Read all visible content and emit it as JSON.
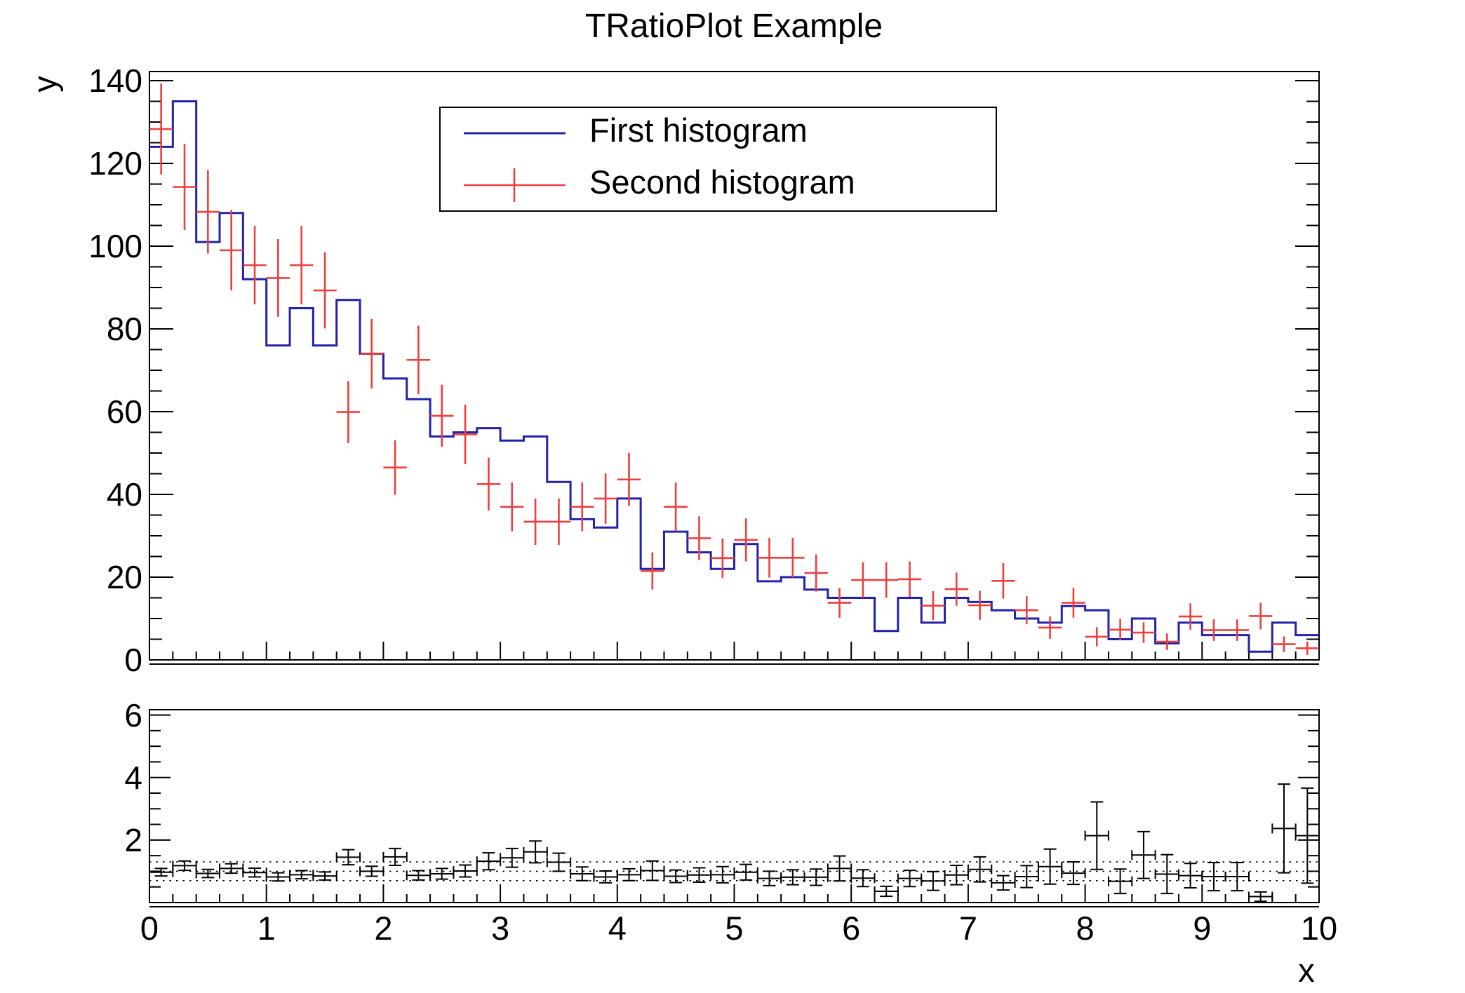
{
  "title": "TRatioPlot Example",
  "axes": {
    "x_title": "x",
    "y_title": "y",
    "x_tick_labels": [
      "0",
      "1",
      "2",
      "3",
      "4",
      "5",
      "6",
      "7",
      "8",
      "9",
      "10"
    ],
    "y_tick_labels": [
      "0",
      "20",
      "40",
      "60",
      "80",
      "100",
      "120",
      "140"
    ],
    "ratio_tick_labels": [
      "2",
      "4",
      "6"
    ]
  },
  "legend": {
    "entries": [
      {
        "label": "First histogram",
        "color": "#2121ac",
        "type": "line"
      },
      {
        "label": "Second histogram",
        "color": "#ee3e3e",
        "type": "errorbar"
      }
    ]
  },
  "colors": {
    "first_hist": "#2121ac",
    "second_hist": "#ee3e3e",
    "ratio_points": "#000000",
    "frame": "#000000"
  },
  "chart_data": {
    "type": "ratio_hist",
    "title": "TRatioPlot Example",
    "xlabel": "x",
    "ylabel": "y",
    "x_start": 0,
    "x_end": 10,
    "n_bins": 50,
    "bin_width": 0.2,
    "main_ylim": [
      0,
      142.2
    ],
    "main_yticks": [
      0,
      20,
      40,
      60,
      80,
      100,
      120,
      140
    ],
    "main_yminor_step": 5,
    "ratio_ylim": [
      0,
      6.17
    ],
    "ratio_yticks": [
      2,
      4,
      6
    ],
    "ratio_yminor_step": 0.5,
    "xticks": [
      0,
      1,
      2,
      3,
      4,
      5,
      6,
      7,
      8,
      9,
      10
    ],
    "xminor_step": 0.2,
    "gridlines": [
      0.7,
      1.0,
      1.3
    ],
    "grid_style": "dotted",
    "legend_position": "top-center",
    "series": [
      {
        "name": "First histogram",
        "style": "step-line",
        "values": [
          124,
          135,
          101,
          108,
          92,
          76,
          85,
          76,
          87,
          74,
          68,
          63,
          54,
          55,
          56,
          53,
          54,
          43,
          34,
          32,
          39,
          22,
          31,
          26,
          22,
          28,
          19,
          20,
          17,
          15,
          15,
          7,
          15,
          9,
          15,
          14,
          12,
          10,
          9,
          13,
          12,
          5,
          10,
          4,
          9,
          6,
          6,
          2,
          9,
          6
        ]
      },
      {
        "name": "Second histogram",
        "style": "error-cross",
        "values": [
          128.3,
          114.3,
          108.3,
          99.0,
          95.4,
          92.3,
          95.4,
          89.3,
          59.9,
          74.0,
          46.5,
          72.5,
          59.0,
          54.5,
          42.5,
          37.0,
          33.4,
          33.4,
          37.0,
          39.0,
          43.6,
          21.5,
          37.0,
          29.4,
          24.6,
          29.0,
          24.7,
          24.7,
          21.0,
          13.8,
          19.3,
          19.3,
          19.5,
          13.1,
          17.1,
          13.2,
          19.1,
          12.0,
          7.8,
          13.8,
          5.6,
          7.3,
          6.6,
          4.4,
          10.5,
          7.2,
          7.2,
          10.6,
          3.8,
          2.8
        ],
        "errors": [
          11.0,
          10.4,
          10.1,
          9.7,
          9.5,
          9.4,
          9.5,
          9.2,
          7.5,
          8.4,
          6.6,
          8.3,
          7.5,
          7.2,
          6.4,
          5.9,
          5.6,
          5.6,
          5.9,
          6.1,
          6.4,
          4.5,
          5.9,
          5.3,
          4.8,
          5.2,
          4.8,
          4.8,
          4.5,
          3.6,
          4.3,
          4.3,
          4.3,
          3.5,
          4.0,
          3.5,
          4.3,
          3.4,
          2.7,
          3.6,
          2.3,
          2.6,
          2.5,
          2.0,
          3.2,
          2.6,
          2.6,
          3.2,
          1.9,
          1.6
        ]
      }
    ],
    "ratio": {
      "name": "h1/h2 ratio",
      "style": "error-cross-capped",
      "values": [
        0.97,
        1.18,
        0.93,
        1.09,
        0.96,
        0.82,
        0.89,
        0.85,
        1.45,
        1.0,
        1.46,
        0.87,
        0.92,
        1.01,
        1.32,
        1.43,
        1.62,
        1.29,
        0.92,
        0.82,
        0.89,
        1.02,
        0.84,
        0.88,
        0.89,
        0.97,
        0.77,
        0.81,
        0.81,
        1.09,
        0.78,
        0.36,
        0.77,
        0.69,
        0.88,
        1.06,
        0.63,
        0.83,
        1.15,
        0.94,
        2.14,
        0.68,
        1.52,
        0.91,
        0.86,
        0.83,
        0.83,
        0.19,
        2.37,
        2.14
      ],
      "errors": [
        0.12,
        0.15,
        0.13,
        0.15,
        0.14,
        0.13,
        0.13,
        0.13,
        0.24,
        0.16,
        0.27,
        0.15,
        0.17,
        0.19,
        0.27,
        0.3,
        0.35,
        0.29,
        0.22,
        0.19,
        0.19,
        0.31,
        0.2,
        0.23,
        0.26,
        0.25,
        0.23,
        0.24,
        0.26,
        0.4,
        0.27,
        0.16,
        0.26,
        0.3,
        0.31,
        0.4,
        0.23,
        0.35,
        0.56,
        0.36,
        1.08,
        0.39,
        0.75,
        0.62,
        0.39,
        0.45,
        0.45,
        0.15,
        1.42,
        1.52
      ]
    }
  }
}
